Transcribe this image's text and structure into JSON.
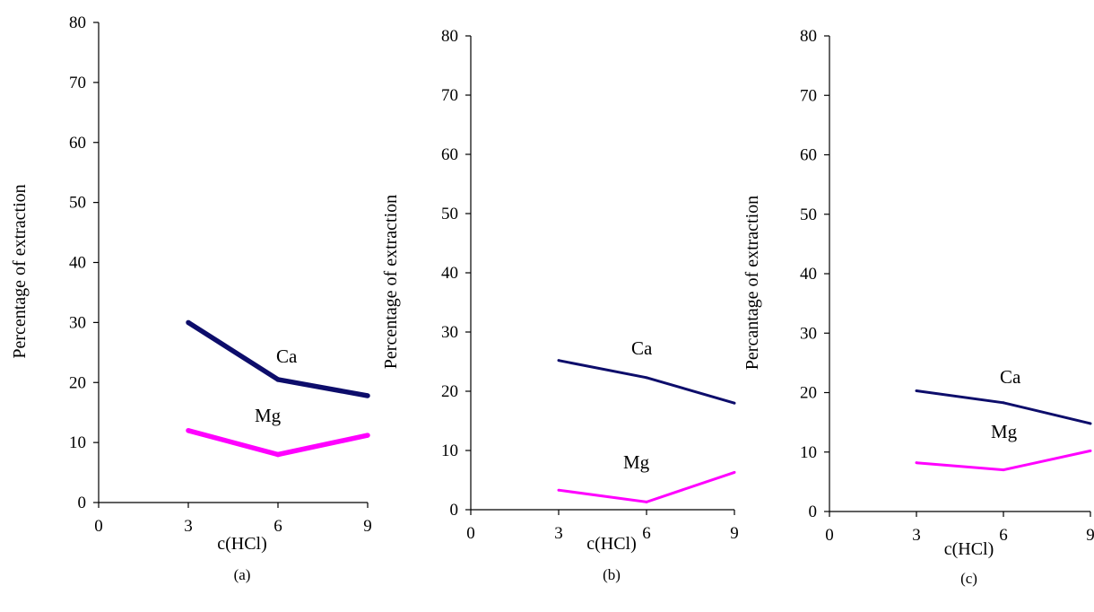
{
  "chart_data": [
    {
      "type": "line",
      "caption": "(a)",
      "xlabel": "c(HCl)",
      "ylabel": "Percentage of extraction",
      "x_ticks": [
        0,
        3,
        6,
        9
      ],
      "y_ticks": [
        0,
        10,
        20,
        30,
        40,
        50,
        60,
        70,
        80
      ],
      "xlim": [
        0,
        9
      ],
      "ylim": [
        0,
        80
      ],
      "series": [
        {
          "name": "Ca",
          "color": "#0d0d6b",
          "x": [
            3,
            6,
            9
          ],
          "values": [
            30,
            20.5,
            17.8
          ]
        },
        {
          "name": "Mg",
          "color": "#ff00ff",
          "x": [
            3,
            6,
            9
          ],
          "values": [
            12,
            8,
            11.2
          ]
        }
      ]
    },
    {
      "type": "line",
      "caption": "(b)",
      "xlabel": "c(HCl)",
      "ylabel": "Percentage  of extraction",
      "x_ticks": [
        0,
        3,
        6,
        9
      ],
      "y_ticks": [
        0,
        10,
        20,
        30,
        40,
        50,
        60,
        70,
        80
      ],
      "xlim": [
        0,
        9
      ],
      "ylim": [
        0,
        80
      ],
      "series": [
        {
          "name": "Ca",
          "color": "#0d0d6b",
          "x": [
            3,
            6,
            9
          ],
          "values": [
            25.2,
            22.3,
            18
          ]
        },
        {
          "name": "Mg",
          "color": "#ff00ff",
          "x": [
            3,
            6,
            9
          ],
          "values": [
            3.3,
            1.3,
            6.3
          ]
        }
      ]
    },
    {
      "type": "line",
      "caption": "(c)",
      "xlabel": "c(HCl)",
      "ylabel": "Percantage of extraction",
      "x_ticks": [
        0,
        3,
        6,
        9
      ],
      "y_ticks": [
        0,
        10,
        20,
        30,
        40,
        50,
        60,
        70,
        80
      ],
      "xlim": [
        0,
        9
      ],
      "ylim": [
        0,
        80
      ],
      "series": [
        {
          "name": "Ca",
          "color": "#0d0d6b",
          "x": [
            3,
            6,
            9
          ],
          "values": [
            20.3,
            18.3,
            14.8
          ]
        },
        {
          "name": "Mg",
          "color": "#ff00ff",
          "x": [
            3,
            6,
            9
          ],
          "values": [
            8.2,
            7,
            10.2
          ]
        }
      ]
    }
  ]
}
